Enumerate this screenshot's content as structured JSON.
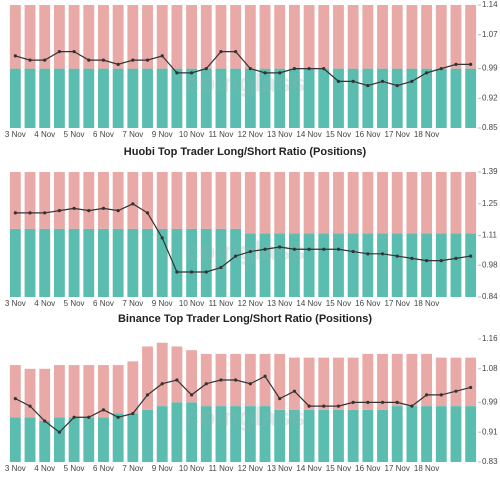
{
  "chart_data": [
    {
      "type": "bar",
      "categories": [
        "3 Nov",
        null,
        "4 Nov",
        null,
        "5 Nov",
        null,
        "6 Nov",
        null,
        "7 Nov",
        null,
        "9 Nov",
        null,
        "10 Nov",
        null,
        "11 Nov",
        null,
        "12 Nov",
        null,
        "13 Nov",
        null,
        "14 Nov",
        null,
        "15 Nov",
        null,
        "16 Nov",
        null,
        "17 Nov",
        null,
        "18 Nov",
        null,
        null,
        null
      ],
      "series": [
        {
          "color": "#5bbdb0",
          "values": [
            0.99,
            0.99,
            0.99,
            0.99,
            0.99,
            0.99,
            0.99,
            0.99,
            0.99,
            0.99,
            0.99,
            0.99,
            0.99,
            0.99,
            0.99,
            0.99,
            0.99,
            0.99,
            0.99,
            0.99,
            0.99,
            0.99,
            0.99,
            0.99,
            0.99,
            0.99,
            0.99,
            0.99,
            0.99,
            0.99,
            0.99,
            0.99
          ]
        },
        {
          "color": "#e9a9a6",
          "values": [
            0.15,
            0.15,
            0.15,
            0.15,
            0.15,
            0.15,
            0.15,
            0.15,
            0.15,
            0.15,
            0.15,
            0.15,
            0.15,
            0.15,
            0.15,
            0.15,
            0.15,
            0.15,
            0.15,
            0.15,
            0.15,
            0.15,
            0.15,
            0.15,
            0.15,
            0.15,
            0.15,
            0.15,
            0.15,
            0.15,
            0.15,
            0.15
          ]
        },
        {
          "type": "line",
          "color": "#333333",
          "values": [
            1.02,
            1.01,
            1.01,
            1.03,
            1.03,
            1.01,
            1.01,
            1.0,
            1.01,
            1.01,
            1.02,
            0.98,
            0.98,
            0.99,
            1.03,
            1.03,
            0.99,
            0.98,
            0.98,
            0.99,
            0.99,
            0.99,
            0.96,
            0.96,
            0.95,
            0.96,
            0.95,
            0.96,
            0.98,
            0.99,
            1.0,
            1.0
          ]
        }
      ],
      "ylim": [
        0.85,
        1.14
      ],
      "yticks": [
        0.85,
        0.92,
        0.99,
        1.07,
        1.14
      ],
      "watermark": "coinglass"
    },
    {
      "type": "bar",
      "title": "Huobi Top Trader Long/Short Ratio (Positions)",
      "categories": [
        "3 Nov",
        null,
        "4 Nov",
        null,
        "5 Nov",
        null,
        "6 Nov",
        null,
        "7 Nov",
        null,
        "9 Nov",
        null,
        "10 Nov",
        null,
        "11 Nov",
        null,
        "12 Nov",
        null,
        "13 Nov",
        null,
        "14 Nov",
        null,
        "15 Nov",
        null,
        "16 Nov",
        null,
        "17 Nov",
        null,
        "18 Nov",
        null,
        null,
        null
      ],
      "series": [
        {
          "color": "#5bbdb0",
          "values": [
            1.14,
            1.14,
            1.14,
            1.14,
            1.14,
            1.14,
            1.14,
            1.14,
            1.14,
            1.14,
            1.14,
            1.14,
            1.14,
            1.14,
            1.14,
            1.14,
            1.12,
            1.12,
            1.12,
            1.12,
            1.12,
            1.12,
            1.12,
            1.12,
            1.12,
            1.12,
            1.12,
            1.12,
            1.12,
            1.12,
            1.12,
            1.12
          ]
        },
        {
          "color": "#e9a9a6",
          "values": [
            0.25,
            0.25,
            0.25,
            0.25,
            0.25,
            0.25,
            0.25,
            0.25,
            0.25,
            0.25,
            0.25,
            0.25,
            0.25,
            0.25,
            0.25,
            0.25,
            0.27,
            0.27,
            0.27,
            0.27,
            0.27,
            0.27,
            0.27,
            0.27,
            0.27,
            0.27,
            0.27,
            0.27,
            0.27,
            0.27,
            0.27,
            0.27
          ]
        },
        {
          "type": "line",
          "color": "#333333",
          "values": [
            1.21,
            1.21,
            1.21,
            1.22,
            1.23,
            1.22,
            1.23,
            1.22,
            1.25,
            1.21,
            1.1,
            0.95,
            0.95,
            0.95,
            0.97,
            1.02,
            1.04,
            1.05,
            1.06,
            1.05,
            1.05,
            1.05,
            1.05,
            1.04,
            1.03,
            1.03,
            1.02,
            1.01,
            1.0,
            1.0,
            1.01,
            1.02
          ]
        }
      ],
      "ylim": [
        0.84,
        1.39
      ],
      "yticks": [
        0.84,
        0.98,
        1.11,
        1.25,
        1.39
      ],
      "watermark": "coinglass"
    },
    {
      "type": "bar",
      "title": "Binance Top Trader Long/Short Ratio (Positions)",
      "categories": [
        "3 Nov",
        null,
        "4 Nov",
        null,
        "5 Nov",
        null,
        "6 Nov",
        null,
        "7 Nov",
        null,
        "9 Nov",
        null,
        "10 Nov",
        null,
        "11 Nov",
        null,
        "12 Nov",
        null,
        "13 Nov",
        null,
        "14 Nov",
        null,
        "15 Nov",
        null,
        "16 Nov",
        null,
        "17 Nov",
        null,
        "18 Nov",
        null,
        null,
        null
      ],
      "series": [
        {
          "color": "#5bbdb0",
          "values": [
            0.95,
            0.95,
            0.94,
            0.95,
            0.95,
            0.95,
            0.95,
            0.96,
            0.96,
            0.97,
            0.98,
            0.99,
            0.99,
            0.98,
            0.98,
            0.98,
            0.98,
            0.98,
            0.97,
            0.97,
            0.97,
            0.97,
            0.97,
            0.97,
            0.97,
            0.97,
            0.98,
            0.98,
            0.98,
            0.98,
            0.98,
            0.98
          ]
        },
        {
          "color": "#e9a9a6",
          "values": [
            0.14,
            0.13,
            0.14,
            0.14,
            0.14,
            0.14,
            0.14,
            0.13,
            0.14,
            0.17,
            0.17,
            0.15,
            0.14,
            0.14,
            0.14,
            0.14,
            0.14,
            0.14,
            0.15,
            0.14,
            0.14,
            0.14,
            0.14,
            0.14,
            0.15,
            0.15,
            0.14,
            0.14,
            0.14,
            0.13,
            0.13,
            0.13
          ]
        },
        {
          "type": "line",
          "color": "#333333",
          "values": [
            1.0,
            0.98,
            0.94,
            0.91,
            0.95,
            0.95,
            0.97,
            0.95,
            0.96,
            1.01,
            1.04,
            1.05,
            1.01,
            1.04,
            1.05,
            1.05,
            1.04,
            1.06,
            1.0,
            1.02,
            0.98,
            0.98,
            0.98,
            0.99,
            0.99,
            0.99,
            0.99,
            0.98,
            1.01,
            1.01,
            1.02,
            1.03
          ]
        }
      ],
      "ylim": [
        0.83,
        1.16
      ],
      "yticks": [
        0.83,
        0.91,
        0.99,
        1.08,
        1.16
      ],
      "watermark": "coinglass"
    }
  ]
}
